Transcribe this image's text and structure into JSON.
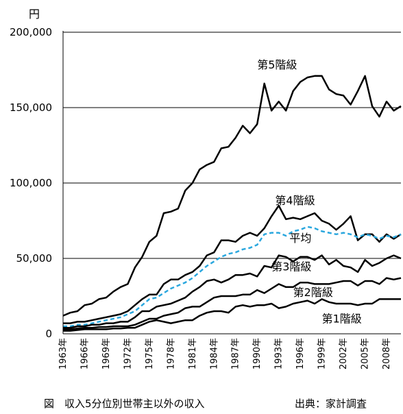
{
  "chart_data": {
    "type": "line",
    "title": "",
    "ylabel": "円",
    "xlabel": "",
    "ylim": [
      0,
      200000
    ],
    "yticks": [
      0,
      50000,
      100000,
      150000,
      200000
    ],
    "ytick_labels": [
      "0",
      "50,000",
      "100,000",
      "150,000",
      "200,000"
    ],
    "xticks": [
      1963,
      1966,
      1969,
      1972,
      1975,
      1978,
      1981,
      1984,
      1987,
      1990,
      1993,
      1996,
      1999,
      2002,
      2005,
      2008
    ],
    "xtick_labels": [
      "1963年",
      "1966年",
      "1969年",
      "1972年",
      "1975年",
      "1978年",
      "1981年",
      "1984年",
      "1987年",
      "1990年",
      "1993年",
      "1996年",
      "1999年",
      "2002年",
      "2005年",
      "2008年"
    ],
    "grid": "horizontal",
    "legend": "inline labels",
    "x": [
      1963,
      1964,
      1965,
      1966,
      1967,
      1968,
      1969,
      1970,
      1971,
      1972,
      1973,
      1974,
      1975,
      1976,
      1977,
      1978,
      1979,
      1980,
      1981,
      1982,
      1983,
      1984,
      1985,
      1986,
      1987,
      1988,
      1989,
      1990,
      1991,
      1992,
      1993,
      1994,
      1995,
      1996,
      1997,
      1998,
      1999,
      2000,
      2001,
      2002,
      2003,
      2004,
      2005,
      2006,
      2007,
      2008,
      2009,
      2010
    ],
    "series": [
      {
        "name": "第5階級",
        "color": "#000000",
        "dashed": false,
        "values": [
          12000,
          14000,
          15000,
          19000,
          20000,
          23000,
          24000,
          28000,
          31000,
          33000,
          44000,
          51000,
          61000,
          65000,
          80000,
          81000,
          83000,
          95000,
          100000,
          109000,
          112000,
          114000,
          123000,
          124000,
          130000,
          138000,
          133000,
          139000,
          166000,
          148000,
          154000,
          148000,
          161000,
          167000,
          170000,
          171000,
          171000,
          162000,
          159000,
          158000,
          152000,
          161000,
          171000,
          151000,
          144000,
          154000,
          148000,
          151000
        ]
      },
      {
        "name": "第4階級",
        "color": "#000000",
        "dashed": false,
        "values": [
          7000,
          7000,
          8000,
          8000,
          9000,
          10000,
          11000,
          12000,
          13000,
          15000,
          19000,
          23000,
          26000,
          26000,
          33000,
          36000,
          36000,
          39000,
          41000,
          45000,
          52000,
          54000,
          62000,
          62000,
          61000,
          65000,
          67000,
          65000,
          70000,
          78000,
          85000,
          76000,
          77000,
          76000,
          78000,
          80000,
          75000,
          73000,
          69000,
          73000,
          78000,
          62000,
          66000,
          66000,
          61000,
          66000,
          63000,
          66000
        ]
      },
      {
        "name": "平均",
        "color": "#2aa7de",
        "dashed": true,
        "values": [
          5000,
          5000,
          6000,
          6000,
          7000,
          8000,
          9000,
          10000,
          11000,
          13000,
          15000,
          19000,
          23000,
          24000,
          27000,
          30000,
          32000,
          34000,
          37000,
          41000,
          45000,
          48000,
          51000,
          53000,
          54000,
          56000,
          57000,
          59000,
          66000,
          67000,
          67000,
          65000,
          68000,
          69000,
          71000,
          70000,
          68000,
          67000,
          66000,
          67000,
          66000,
          64000,
          66000,
          65000,
          63000,
          65000,
          64000,
          66000
        ]
      },
      {
        "name": "第3階級",
        "color": "#000000",
        "dashed": false,
        "values": [
          4000,
          4000,
          5000,
          5000,
          6000,
          6000,
          7000,
          7000,
          8000,
          8000,
          11000,
          15000,
          15000,
          18000,
          19000,
          20000,
          22000,
          24000,
          28000,
          31000,
          35000,
          36000,
          34000,
          36000,
          39000,
          39000,
          40000,
          38000,
          45000,
          44000,
          52000,
          51000,
          48000,
          51000,
          51000,
          49000,
          52000,
          46000,
          49000,
          45000,
          44000,
          41000,
          49000,
          45000,
          47000,
          50000,
          52000,
          50000
        ]
      },
      {
        "name": "第2階級",
        "color": "#000000",
        "dashed": false,
        "values": [
          3000,
          3000,
          3500,
          4000,
          4000,
          4500,
          4500,
          5000,
          5000,
          5000,
          6000,
          8000,
          10000,
          10000,
          12000,
          13000,
          14000,
          17000,
          18000,
          18000,
          21000,
          24000,
          25000,
          25000,
          25000,
          26000,
          26000,
          29000,
          27000,
          30000,
          33000,
          31000,
          31000,
          34000,
          34000,
          33000,
          33000,
          33000,
          34000,
          35000,
          35000,
          32000,
          35000,
          35000,
          33000,
          37000,
          36000,
          37000
        ]
      },
      {
        "name": "第1階級",
        "color": "#000000",
        "dashed": false,
        "values": [
          2000,
          2000,
          2500,
          3000,
          3000,
          3000,
          3000,
          3500,
          3500,
          4000,
          4000,
          6000,
          8000,
          9000,
          8000,
          7000,
          8000,
          9000,
          9000,
          12000,
          14000,
          15000,
          15000,
          14000,
          18000,
          19000,
          18000,
          19000,
          19000,
          20000,
          17000,
          18000,
          20000,
          21000,
          22000,
          20000,
          23000,
          21000,
          20000,
          20000,
          20000,
          19000,
          20000,
          20000,
          23000,
          23000,
          23000,
          23000
        ]
      }
    ],
    "annotations": [
      {
        "text": "第5階級",
        "x": 1990.0,
        "y": 176000
      },
      {
        "text": "第4階級",
        "x": 1992.5,
        "y": 86000
      },
      {
        "text": "平均",
        "x": 1994.5,
        "y": 61000
      },
      {
        "text": "第3階級",
        "x": 1992.0,
        "y": 42000
      },
      {
        "text": "第2階級",
        "x": 1995.0,
        "y": 25000
      },
      {
        "text": "第1階級",
        "x": 1999.0,
        "y": 7500
      }
    ]
  },
  "caption": {
    "left": "図　収入5分位別世帯主以外の収入",
    "right": "出典：家計調査"
  }
}
